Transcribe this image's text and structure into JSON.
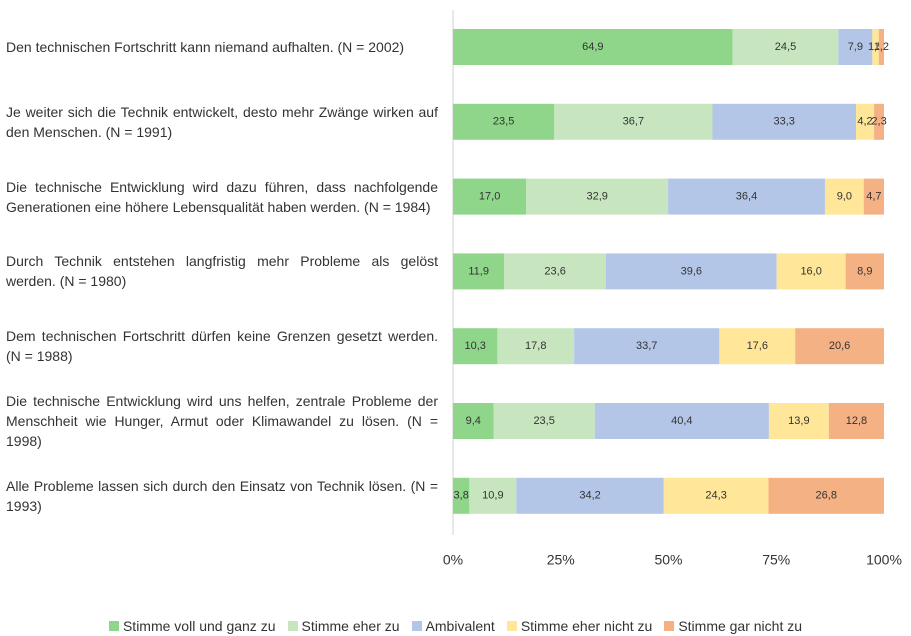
{
  "chart_data": {
    "type": "stacked-bar-horizontal",
    "categories": [
      "Den technischen Fortschritt kann niemand aufhalten. (N = 2002)",
      "Je weiter sich die Technik entwickelt, desto mehr Zwänge wirken auf den Menschen. (N = 1991)",
      "Die technische Entwicklung wird dazu führen, dass nachfolgende Generationen eine höhere Lebensqualität haben werden. (N = 1984)",
      "Durch Technik entstehen langfristig mehr Probleme als gelöst werden. (N = 1980)",
      "Dem technischen Fortschritt dürfen keine Grenzen gesetzt werden. (N = 1988)",
      "Die technische Entwicklung wird uns helfen, zentrale Probleme der Menschheit wie Hunger, Armut oder Klimawandel zu lösen. (N = 1998)",
      "Alle Probleme lassen sich durch den Einsatz von Technik lösen. (N = 1993)"
    ],
    "series": [
      {
        "name": "Stimme voll und ganz zu",
        "color": "#8fd68a",
        "values": [
          64.9,
          23.5,
          17.0,
          11.9,
          10.3,
          9.4,
          3.8
        ],
        "value_labels": [
          "64,9",
          "23,5",
          "17,0",
          "11,9",
          "10,3",
          "9,4",
          "3,8"
        ]
      },
      {
        "name": "Stimme eher zu",
        "color": "#c7e6bf",
        "values": [
          24.5,
          36.7,
          32.9,
          23.6,
          17.8,
          23.5,
          10.9
        ],
        "value_labels": [
          "24,5",
          "36,7",
          "32,9",
          "23,6",
          "17,8",
          "23,5",
          "10,9"
        ]
      },
      {
        "name": "Ambivalent",
        "color": "#b4c6e7",
        "values": [
          7.9,
          33.3,
          36.4,
          39.6,
          33.7,
          40.4,
          34.2
        ],
        "value_labels": [
          "7,9",
          "33,3",
          "36,4",
          "39,6",
          "33,7",
          "40,4",
          "34,2"
        ]
      },
      {
        "name": "Stimme eher nicht zu",
        "color": "#ffe699",
        "values": [
          1.5,
          4.2,
          9.0,
          16.0,
          17.6,
          13.9,
          24.3
        ],
        "value_labels": [
          "1,5",
          "4,2",
          "9,0",
          "16,0",
          "17,6",
          "13,9",
          "24,3"
        ]
      },
      {
        "name": "Stimme gar nicht zu",
        "color": "#f4b183",
        "values": [
          1.2,
          2.3,
          4.7,
          8.9,
          20.6,
          12.8,
          26.8
        ],
        "value_labels": [
          "1,2",
          "2,3",
          "4,7",
          "8,9",
          "20,6",
          "12,8",
          "26,8"
        ]
      }
    ],
    "xlim": [
      0,
      100
    ],
    "xticks": [
      {
        "value": 0,
        "label": "0%"
      },
      {
        "value": 25,
        "label": "25%"
      },
      {
        "value": 50,
        "label": "50%"
      },
      {
        "value": 75,
        "label": "75%"
      },
      {
        "value": 100,
        "label": "100%"
      }
    ],
    "legend": "bottom"
  }
}
